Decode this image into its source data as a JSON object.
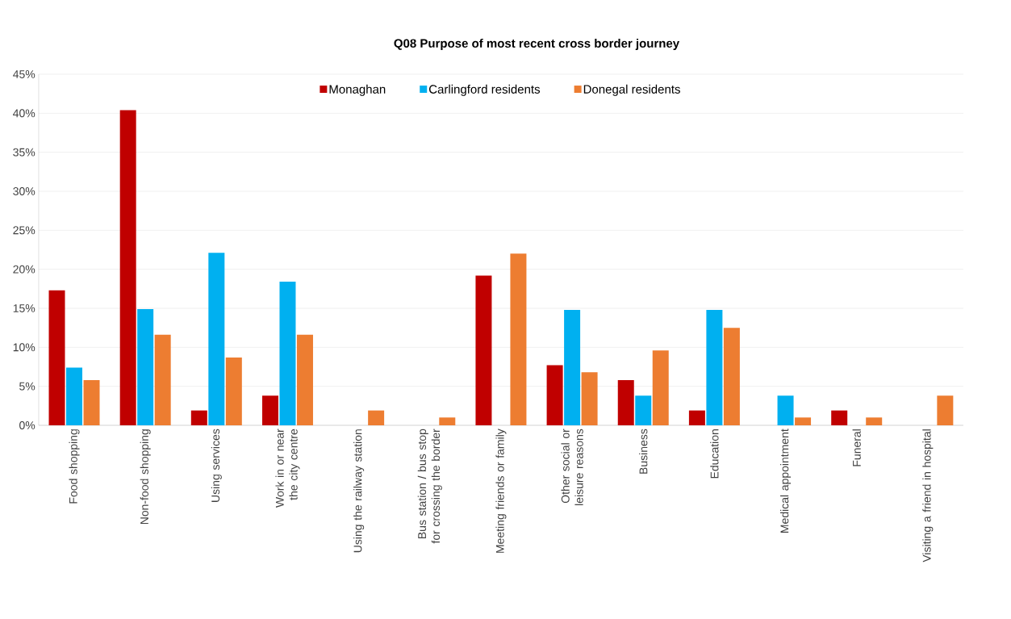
{
  "chart_data": {
    "type": "bar",
    "title": "Q08 Purpose of most recent cross border journey",
    "categories": [
      "Food shopping",
      "Non-food shopping",
      "Using services",
      "Work in or near the city centre",
      "Using the railway station",
      "Bus station / bus stop for crossing the border",
      "Meeting friends or family",
      "Other social or leisure reasons",
      "Business",
      "Education",
      "Medical appointment",
      "Funeral",
      "Visiting a friend in hospital"
    ],
    "series": [
      {
        "name": "Monaghan",
        "color": "#c00000",
        "values": [
          17.3,
          40.4,
          1.9,
          3.8,
          0,
          0,
          19.2,
          7.7,
          5.8,
          1.9,
          0,
          1.9,
          0
        ]
      },
      {
        "name": "Carlingford residents",
        "color": "#00b0f0",
        "values": [
          7.4,
          14.9,
          22.1,
          18.4,
          0,
          0,
          0,
          14.8,
          3.8,
          14.8,
          3.8,
          0,
          0
        ]
      },
      {
        "name": "Donegal residents",
        "color": "#ed7d31",
        "values": [
          5.8,
          11.6,
          8.7,
          11.6,
          1.9,
          1.0,
          22.0,
          6.8,
          9.6,
          12.5,
          1.0,
          1.0,
          3.8
        ]
      }
    ],
    "ylim": [
      0,
      45
    ],
    "yticks": [
      {
        "value": 0,
        "label": "0%"
      },
      {
        "value": 5,
        "label": "5%"
      },
      {
        "value": 10,
        "label": "10%"
      },
      {
        "value": 15,
        "label": "15%"
      },
      {
        "value": 20,
        "label": "20%"
      },
      {
        "value": 25,
        "label": "25%"
      },
      {
        "value": 30,
        "label": "30%"
      },
      {
        "value": 35,
        "label": "35%"
      },
      {
        "value": 40,
        "label": "40%"
      },
      {
        "value": 45,
        "label": "45%"
      }
    ],
    "grid": "y",
    "legend": "top"
  }
}
